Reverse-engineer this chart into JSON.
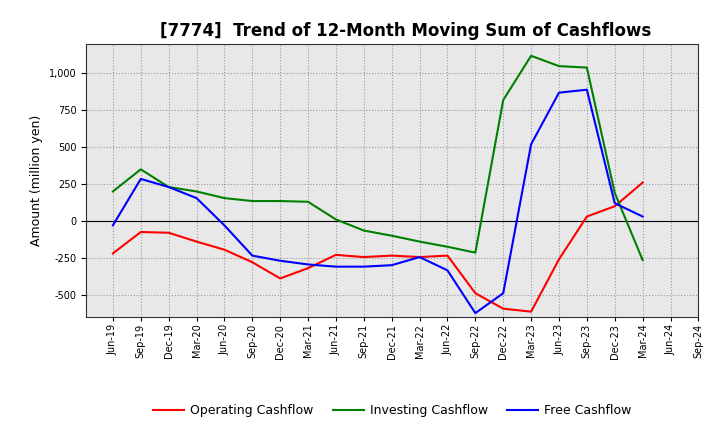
{
  "title": "[7774]  Trend of 12-Month Moving Sum of Cashflows",
  "ylabel": "Amount (million yen)",
  "labels": [
    "Jun-19",
    "Sep-19",
    "Dec-19",
    "Mar-20",
    "Jun-20",
    "Sep-20",
    "Dec-20",
    "Mar-21",
    "Jun-21",
    "Sep-21",
    "Dec-21",
    "Mar-22",
    "Jun-22",
    "Sep-22",
    "Dec-22",
    "Mar-23",
    "Jun-23",
    "Sep-23",
    "Dec-23",
    "Mar-24",
    "Jun-24",
    "Sep-24"
  ],
  "operating": [
    -220,
    -75,
    -80,
    -140,
    -195,
    -280,
    -390,
    -320,
    -230,
    -245,
    -235,
    -245,
    -235,
    -490,
    -595,
    -615,
    -260,
    30,
    100,
    260,
    null,
    null
  ],
  "investing": [
    200,
    350,
    230,
    200,
    155,
    135,
    135,
    130,
    10,
    -65,
    -100,
    -140,
    -175,
    -215,
    820,
    1120,
    1050,
    1040,
    190,
    -265,
    null,
    null
  ],
  "free": [
    -30,
    285,
    230,
    155,
    -30,
    -235,
    -270,
    -295,
    -310,
    -310,
    -300,
    -245,
    -335,
    -625,
    -490,
    520,
    870,
    890,
    120,
    30,
    null,
    null
  ],
  "ylim": [
    -650,
    1200
  ],
  "yticks": [
    -500,
    -250,
    0,
    250,
    500,
    750,
    1000
  ],
  "operating_color": "#ff0000",
  "investing_color": "#008000",
  "free_color": "#0000ff",
  "plot_bg_color": "#e8e8e8",
  "background_color": "#ffffff",
  "grid_color": "#999999",
  "title_fontsize": 12,
  "axis_fontsize": 9,
  "tick_fontsize": 7,
  "legend_fontsize": 9
}
